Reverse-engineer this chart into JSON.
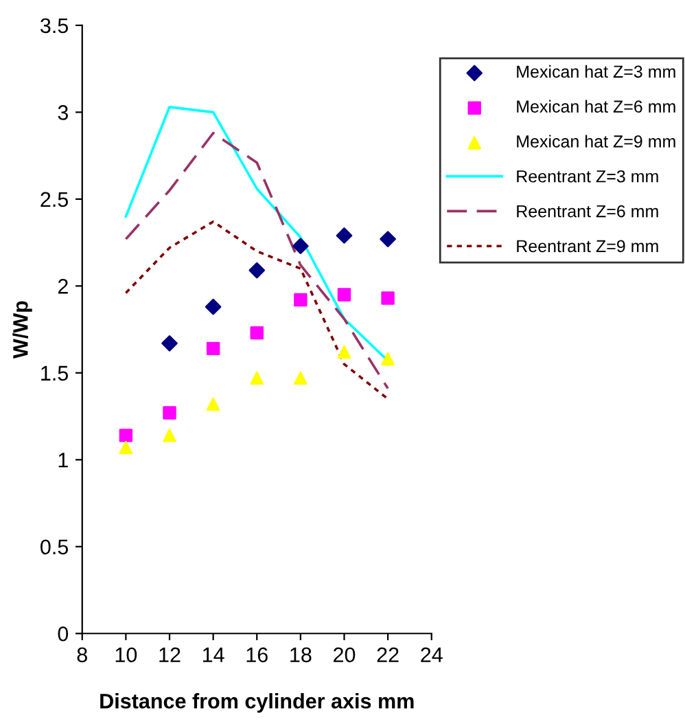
{
  "chart_data": {
    "type": "scatter",
    "xlabel": "Distance from cylinder axis mm",
    "ylabel": "W/Wp",
    "xlim": [
      8,
      24
    ],
    "xticks": [
      8,
      10,
      12,
      14,
      16,
      18,
      20,
      22,
      24
    ],
    "ylim": [
      0,
      3.5
    ],
    "yticks": [
      0,
      0.5,
      1,
      1.5,
      2,
      2.5,
      3,
      3.5
    ],
    "x": [
      10,
      12,
      14,
      16,
      18,
      20,
      22
    ],
    "grid": false,
    "legend": "right",
    "series": [
      {
        "name": "Mexican hat Z=3 mm",
        "marker": "diamond",
        "color": "#000080",
        "values": [
          null,
          1.67,
          1.88,
          2.09,
          2.23,
          2.29,
          2.27
        ]
      },
      {
        "name": "Mexican hat Z=6 mm",
        "marker": "square",
        "color": "#ff00ff",
        "values": [
          1.14,
          1.27,
          1.64,
          1.73,
          1.92,
          1.95,
          1.93
        ]
      },
      {
        "name": "Mexican hat Z=9 mm",
        "marker": "triangle",
        "color": "#ffff00",
        "values": [
          1.07,
          1.14,
          1.32,
          1.47,
          1.47,
          1.62,
          1.58
        ]
      },
      {
        "name": "Reentrant Z=3 mm",
        "type": "line",
        "marker": "none",
        "line_style": "solid",
        "color": "#00ffff",
        "values": [
          2.4,
          3.03,
          3.0,
          2.56,
          2.28,
          1.81,
          1.57
        ]
      },
      {
        "name": "Reentrant Z=6 mm",
        "type": "line",
        "marker": "none",
        "line_style": "dashed",
        "color": "#993366",
        "values": [
          2.27,
          2.55,
          2.88,
          2.71,
          2.12,
          1.81,
          1.41
        ]
      },
      {
        "name": "Reentrant Z=9 mm",
        "type": "line",
        "marker": "none",
        "line_style": "dotted",
        "color": "#800000",
        "values": [
          1.96,
          2.22,
          2.37,
          2.2,
          2.1,
          1.55,
          1.35
        ]
      }
    ]
  }
}
